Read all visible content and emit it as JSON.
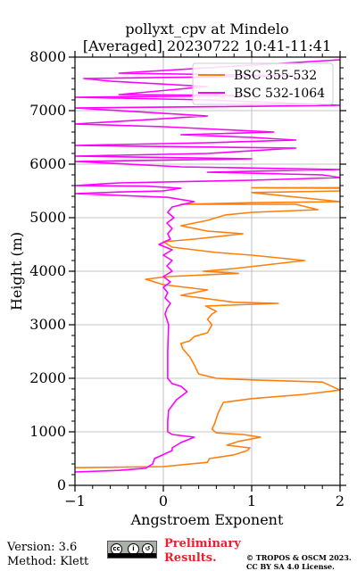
{
  "chart_data": {
    "type": "line",
    "title_line1": "pollyxt_cpv at Mindelo",
    "title_line2": "[Averaged] 20230722 10:41-11:41",
    "xlabel": "Angstroem Exponent",
    "ylabel": "Height (m)",
    "xlim": [
      -1,
      2
    ],
    "ylim": [
      0,
      8000
    ],
    "xticks": [
      "−1",
      "0",
      "1",
      "2"
    ],
    "yticks": [
      "0",
      "1000",
      "2000",
      "3000",
      "4000",
      "5000",
      "6000",
      "7000",
      "8000"
    ],
    "grid": true,
    "legend_position": "top-right",
    "series": [
      {
        "name": "BSC 355-532",
        "color": "#ff7f0e",
        "points": [
          [
            -1.0,
            330
          ],
          [
            0.0,
            350
          ],
          [
            0.5,
            430
          ],
          [
            0.52,
            500
          ],
          [
            0.8,
            570
          ],
          [
            0.95,
            650
          ],
          [
            0.98,
            700
          ],
          [
            0.72,
            750
          ],
          [
            0.85,
            820
          ],
          [
            1.1,
            900
          ],
          [
            0.9,
            950
          ],
          [
            0.6,
            980
          ],
          [
            0.55,
            1050
          ],
          [
            0.58,
            1150
          ],
          [
            0.6,
            1250
          ],
          [
            0.62,
            1350
          ],
          [
            0.65,
            1450
          ],
          [
            0.68,
            1550
          ],
          [
            1.0,
            1620
          ],
          [
            1.6,
            1700
          ],
          [
            2.0,
            1780
          ],
          [
            1.8,
            1930
          ],
          [
            1.0,
            1970
          ],
          [
            0.6,
            2000
          ],
          [
            0.4,
            2080
          ],
          [
            0.35,
            2250
          ],
          [
            0.3,
            2400
          ],
          [
            0.22,
            2550
          ],
          [
            0.2,
            2650
          ],
          [
            0.3,
            2700
          ],
          [
            0.35,
            2780
          ],
          [
            0.5,
            2850
          ],
          [
            0.55,
            3000
          ],
          [
            0.5,
            3100
          ],
          [
            0.55,
            3200
          ],
          [
            0.6,
            3250
          ],
          [
            0.48,
            3350
          ],
          [
            1.3,
            3400
          ],
          [
            0.8,
            3420
          ],
          [
            0.2,
            3550
          ],
          [
            0.5,
            3650
          ],
          [
            0.0,
            3750
          ],
          [
            -0.2,
            3850
          ],
          [
            0.05,
            3900
          ],
          [
            0.85,
            3960
          ],
          [
            0.45,
            4000
          ],
          [
            0.8,
            4050
          ],
          [
            1.6,
            4200
          ],
          [
            1.0,
            4300
          ],
          [
            0.6,
            4350
          ],
          [
            0.1,
            4450
          ],
          [
            0.0,
            4550
          ],
          [
            0.35,
            4600
          ],
          [
            0.9,
            4700
          ],
          [
            0.5,
            4750
          ],
          [
            0.2,
            4850
          ],
          [
            0.5,
            4950
          ],
          [
            0.7,
            5050
          ],
          [
            1.0,
            5100
          ],
          [
            1.75,
            5150
          ],
          [
            1.5,
            5250
          ],
          [
            0.2,
            5250
          ],
          [
            1.0,
            5280
          ],
          [
            2.0,
            5300
          ],
          [
            1.0,
            5470
          ],
          [
            2.0,
            5500
          ],
          [
            2.0,
            5550
          ],
          [
            1.0,
            5560
          ],
          [
            2.0,
            5560
          ]
        ]
      },
      {
        "name": "BSC 532-1064",
        "color": "#ff00ff",
        "points": [
          [
            -1.0,
            250
          ],
          [
            -0.5,
            280
          ],
          [
            -0.2,
            320
          ],
          [
            -0.12,
            400
          ],
          [
            -0.1,
            500
          ],
          [
            0.1,
            650
          ],
          [
            0.1,
            700
          ],
          [
            0.2,
            800
          ],
          [
            0.35,
            900
          ],
          [
            0.1,
            950
          ],
          [
            0.05,
            1000
          ],
          [
            0.05,
            1200
          ],
          [
            0.06,
            1400
          ],
          [
            0.15,
            1600
          ],
          [
            0.27,
            1750
          ],
          [
            0.2,
            1850
          ],
          [
            0.1,
            1900
          ],
          [
            0.05,
            2000
          ],
          [
            0.05,
            2500
          ],
          [
            0.06,
            3000
          ],
          [
            0.02,
            3200
          ],
          [
            0.04,
            3300
          ],
          [
            0.08,
            3400
          ],
          [
            0.02,
            3500
          ],
          [
            0.05,
            3600
          ],
          [
            0.0,
            3700
          ],
          [
            0.08,
            3800
          ],
          [
            0.0,
            3900
          ],
          [
            0.1,
            4000
          ],
          [
            0.04,
            4100
          ],
          [
            0.1,
            4200
          ],
          [
            0.0,
            4300
          ],
          [
            0.1,
            4400
          ],
          [
            -0.05,
            4500
          ],
          [
            0.08,
            4600
          ],
          [
            0.05,
            4700
          ],
          [
            0.1,
            4800
          ],
          [
            0.04,
            4900
          ],
          [
            0.12,
            5000
          ],
          [
            0.05,
            5100
          ],
          [
            0.1,
            5200
          ],
          [
            0.35,
            5300
          ],
          [
            0.05,
            5380
          ],
          [
            -1.0,
            5450
          ],
          [
            -0.5,
            5480
          ],
          [
            0.0,
            5500
          ],
          [
            0.2,
            5550
          ],
          [
            -0.2,
            5590
          ],
          [
            -1.0,
            5600
          ],
          [
            -0.5,
            5650
          ],
          [
            1.0,
            5700
          ],
          [
            2.0,
            5750
          ],
          [
            1.8,
            5800
          ],
          [
            0.5,
            5850
          ],
          [
            2.0,
            5900
          ],
          [
            0.2,
            5950
          ],
          [
            -1.0,
            6050
          ],
          [
            1.0,
            6100
          ],
          [
            -1.0,
            6150
          ],
          [
            0.5,
            6200
          ],
          [
            1.5,
            6300
          ],
          [
            -1.0,
            6350
          ],
          [
            0.5,
            6400
          ],
          [
            1.5,
            6450
          ],
          [
            1.0,
            6500
          ],
          [
            0.2,
            6550
          ],
          [
            1.25,
            6600
          ],
          [
            0.0,
            6700
          ],
          [
            -1.0,
            6750
          ],
          [
            0.5,
            6900
          ],
          [
            -1.0,
            7050
          ],
          [
            1.0,
            7080
          ],
          [
            2.0,
            7100
          ],
          [
            0.5,
            7200
          ],
          [
            -1.0,
            7250
          ],
          [
            1.0,
            7280
          ],
          [
            -0.5,
            7300
          ],
          [
            0.5,
            7450
          ],
          [
            -0.6,
            7550
          ],
          [
            -0.9,
            7600
          ],
          [
            1.5,
            7650
          ],
          [
            -0.5,
            7700
          ],
          [
            1.0,
            7850
          ],
          [
            2.0,
            7950
          ]
        ]
      }
    ]
  },
  "footer": {
    "version": "Version: 3.6",
    "method": "Method: Klett",
    "cc_license": "CC BY SA",
    "preliminary_line1": "Preliminary",
    "preliminary_line2": "Results.",
    "copyright_line1": "© TROPOS & OSCM 2023.",
    "copyright_line2": "CC BY SA 4.0 License."
  }
}
